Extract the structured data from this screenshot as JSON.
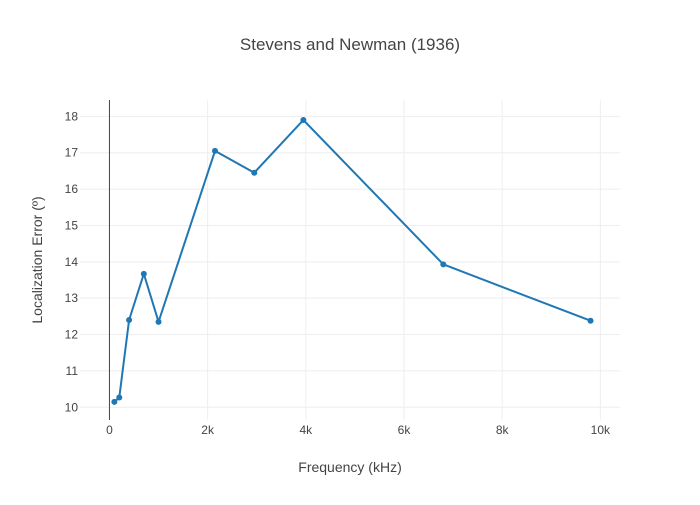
{
  "chart_data": {
    "type": "line",
    "title": "Stevens and Newman (1936)",
    "xlabel": "Frequency (kHz)",
    "ylabel": "Localization Error (º)",
    "xlim": [
      -600,
      10400
    ],
    "ylim": [
      9.65,
      18.45
    ],
    "x_ticks": [
      0,
      2000,
      4000,
      6000,
      8000,
      10000
    ],
    "x_tick_labels": [
      "0",
      "2k",
      "4k",
      "6k",
      "8k",
      "10k"
    ],
    "y_ticks": [
      10,
      11,
      12,
      13,
      14,
      15,
      16,
      17,
      18
    ],
    "y_tick_labels": [
      "10",
      "11",
      "12",
      "13",
      "14",
      "15",
      "16",
      "17",
      "18"
    ],
    "grid": true,
    "series": [
      {
        "color": "#1f77b4",
        "x": [
          100,
          200,
          400,
          700,
          1000,
          2150,
          2950,
          3950,
          6800,
          9800
        ],
        "y": [
          10.15,
          10.27,
          12.4,
          13.67,
          12.35,
          17.05,
          16.45,
          17.9,
          13.93,
          12.38
        ]
      }
    ]
  }
}
